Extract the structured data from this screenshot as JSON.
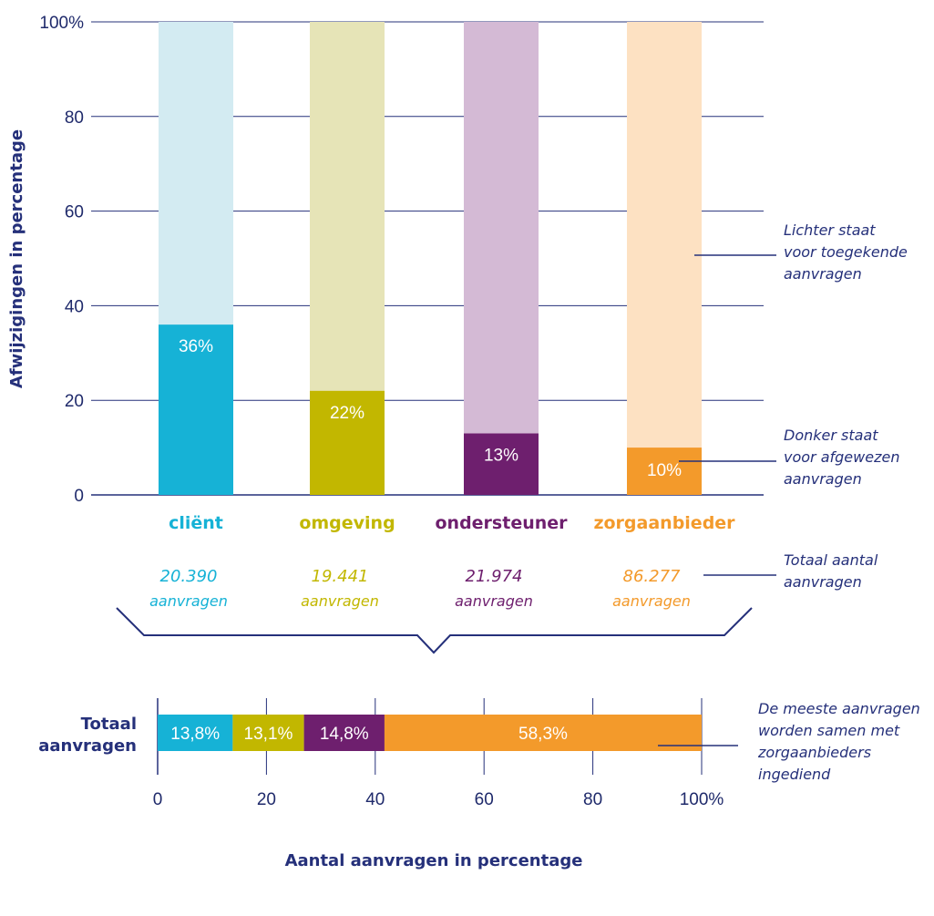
{
  "chart_data": [
    {
      "type": "bar",
      "stacked": true,
      "ylabel": "Afwijzigingen in percentage",
      "ylim": [
        0,
        100
      ],
      "y_ticks": [
        "0",
        "20",
        "40",
        "60",
        "80",
        "100%"
      ],
      "grid": true,
      "categories": [
        "cliënt",
        "omgeving",
        "ondersteuner",
        "zorgaanbieder"
      ],
      "category_colors": [
        "#16b2d6",
        "#c2b700",
        "#6e1f6e",
        "#f39a2b"
      ],
      "light_colors": [
        "#d3ebf2",
        "#e6e4b7",
        "#d4bad5",
        "#fde1c2"
      ],
      "values": [
        36,
        22,
        13,
        10
      ],
      "value_labels": [
        "36%",
        "22%",
        "13%",
        "10%"
      ],
      "counts": [
        "20.390",
        "19.441",
        "21.974",
        "86.277"
      ],
      "count_unit": "aanvragen",
      "annotations": [
        "Lichter staat voor toegekende aanvragen",
        "Donker staat voor afgewezen aanvragen",
        "Totaal aantal aanvragen"
      ]
    },
    {
      "type": "bar",
      "orientation": "horizontal",
      "stacked": true,
      "category": "Totaal aanvragen",
      "xlabel": "Aantal aanvragen in percentage",
      "xlim": [
        0,
        100
      ],
      "x_ticks": [
        "0",
        "20",
        "40",
        "60",
        "80",
        "100%"
      ],
      "grid": true,
      "series": [
        {
          "name": "cliënt",
          "value": 13.8,
          "label": "13,8%",
          "color": "#16b2d6"
        },
        {
          "name": "omgeving",
          "value": 13.1,
          "label": "13,1%",
          "color": "#c2b700"
        },
        {
          "name": "ondersteuner",
          "value": 14.8,
          "label": "14,8%",
          "color": "#6e1f6e"
        },
        {
          "name": "zorgaanbieder",
          "value": 58.3,
          "label": "58,3%",
          "color": "#f39a2b"
        }
      ],
      "annotation": "De meeste aanvragen worden samen met zorgaanbieders ingediend"
    }
  ]
}
